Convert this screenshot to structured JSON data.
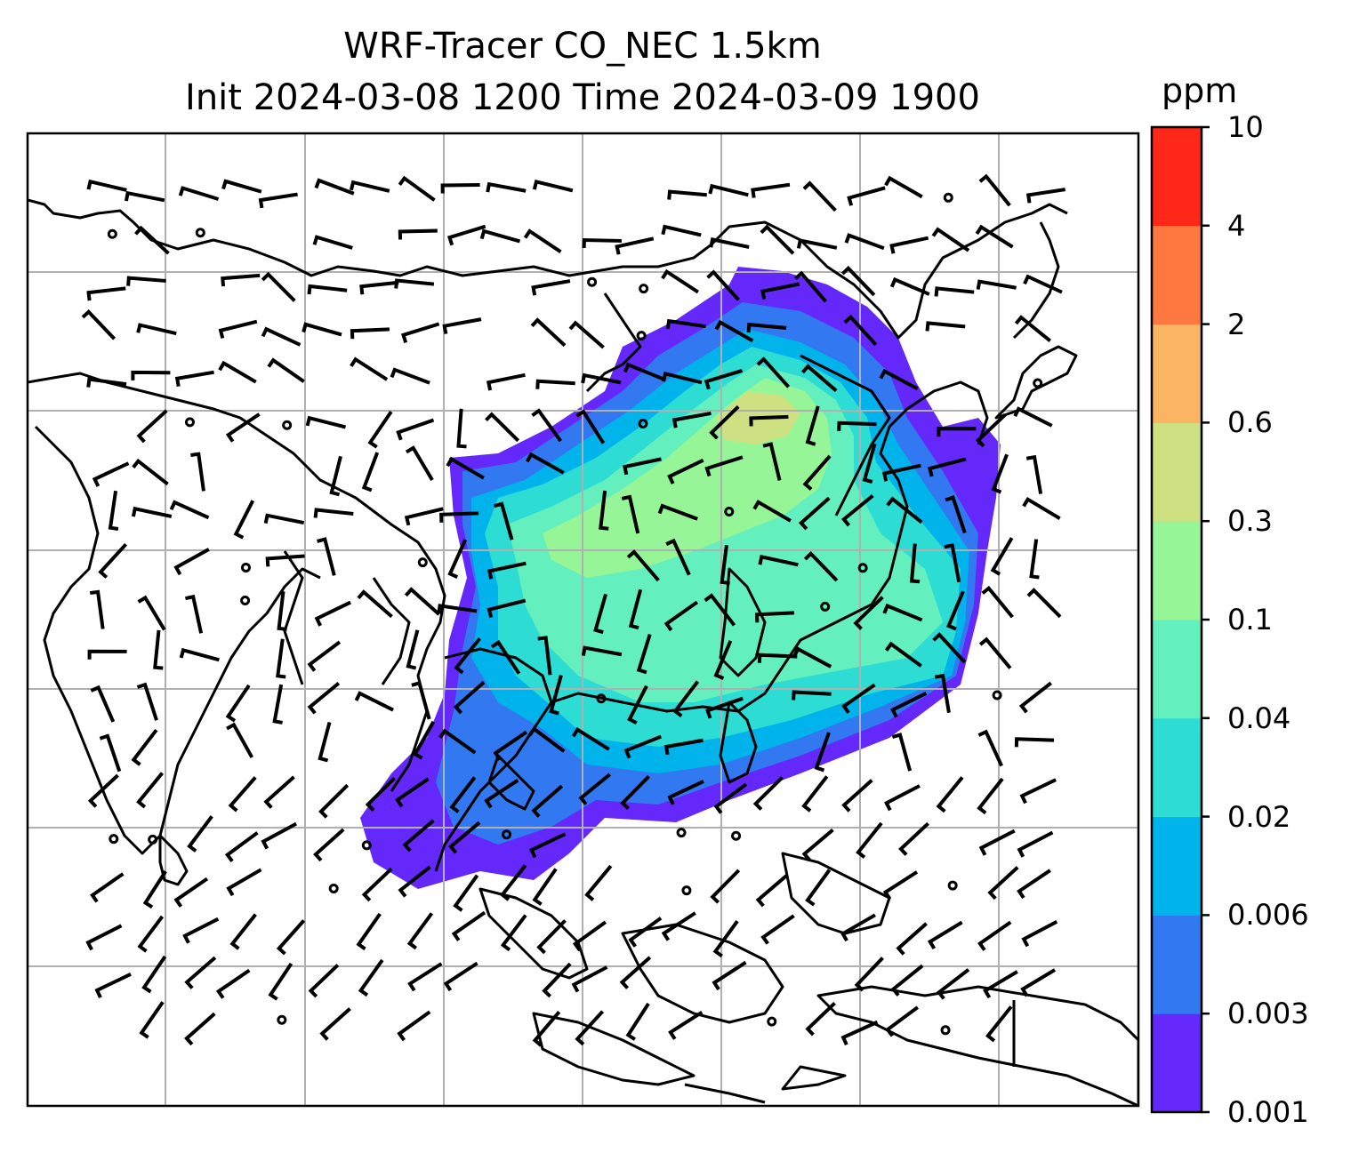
{
  "title": {
    "line1": "WRF-Tracer CO_NEC 1.5km",
    "line2": "Init 2024-03-08 1200 Time 2024-03-09 1900"
  },
  "colorbar": {
    "unit": "ppm",
    "ticks": [
      "0.001",
      "0.003",
      "0.006",
      "0.02",
      "0.04",
      "0.1",
      "0.3",
      "0.6",
      "2",
      "4",
      "10"
    ],
    "colors": [
      "#6428fa",
      "#3278f0",
      "#00b4eb",
      "#2ddcd2",
      "#64f0be",
      "#96f596",
      "#cde182",
      "#fab464",
      "#ff7840",
      "#ff2818"
    ]
  },
  "map": {
    "gridlines": true,
    "features": [
      "coastlines",
      "country borders",
      "wind barbs",
      "CO tracer concentration"
    ]
  }
}
